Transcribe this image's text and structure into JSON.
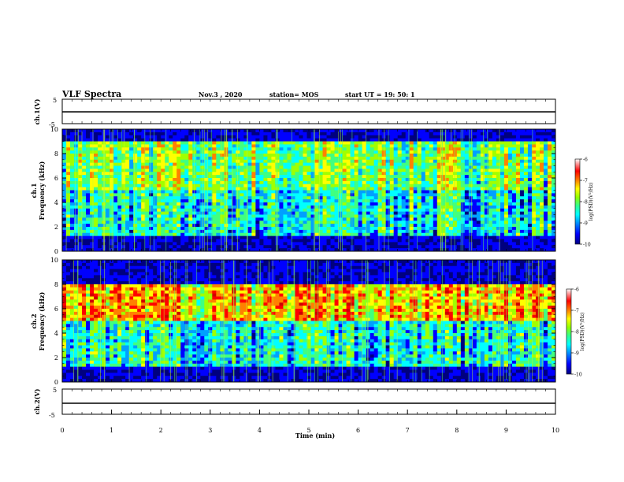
{
  "header": {
    "title": "VLF Spectra",
    "date": "Nov.3 , 2020",
    "station": "station= MOS",
    "start_ut": "start UT = 19: 50: 1"
  },
  "chart_data": [
    {
      "type": "line",
      "panel": "ch1-waveform",
      "ylabel": "ch.1(V)",
      "ylim": [
        -5,
        5
      ],
      "yticks": [
        "5",
        "-5"
      ],
      "x": [
        0,
        10
      ],
      "y": [
        -1.7,
        -1.7
      ]
    },
    {
      "type": "heatmap",
      "panel": "ch1-spectrogram",
      "ylabel_channel": "ch.1",
      "ylabel": "Frequency (kHz)",
      "ylim": [
        0,
        10
      ],
      "yticks": [
        "0",
        "2",
        "4",
        "6",
        "8",
        "10"
      ],
      "xlim": [
        0,
        10
      ],
      "description_bands": [
        {
          "f_low": 0.0,
          "f_high": 1.2,
          "level": "low"
        },
        {
          "f_low": 1.2,
          "f_high": 5.0,
          "level": "medium"
        },
        {
          "f_low": 5.0,
          "f_high": 9.0,
          "level": "medium-high"
        },
        {
          "f_low": 9.0,
          "f_high": 10.0,
          "level": "low"
        }
      ],
      "colorbar": {
        "label": "log(PSD)(V²/Hz)",
        "ticks": [
          "-6",
          "-7",
          "-8",
          "-9",
          "-10"
        ],
        "range": [
          -10,
          -6
        ]
      }
    },
    {
      "type": "heatmap",
      "panel": "ch2-spectrogram",
      "ylabel_channel": "ch.2",
      "ylabel": "Frequency (kHz)",
      "ylim": [
        0,
        10
      ],
      "yticks": [
        "0",
        "2",
        "4",
        "6",
        "8",
        "10"
      ],
      "xlim": [
        0,
        10
      ],
      "description_bands": [
        {
          "f_low": 0.0,
          "f_high": 1.2,
          "level": "low"
        },
        {
          "f_low": 1.2,
          "f_high": 5.0,
          "level": "medium"
        },
        {
          "f_low": 5.0,
          "f_high": 8.0,
          "level": "high"
        },
        {
          "f_low": 8.0,
          "f_high": 10.0,
          "level": "low"
        }
      ],
      "colorbar": {
        "label": "log(PSD)(V²/Hz)",
        "ticks": [
          "-6",
          "-7",
          "-8",
          "-9",
          "-10"
        ],
        "range": [
          -10,
          -6
        ]
      }
    },
    {
      "type": "line",
      "panel": "ch2-waveform",
      "ylabel": "ch.2(V)",
      "ylim": [
        -5,
        5
      ],
      "yticks": [
        "5",
        "-5"
      ],
      "x": [
        0,
        10
      ],
      "y": [
        -1.7,
        -1.7
      ]
    }
  ],
  "xaxis": {
    "label": "Time (min)",
    "ticks": [
      "0",
      "1",
      "2",
      "3",
      "4",
      "5",
      "6",
      "7",
      "8",
      "9",
      "10"
    ],
    "xlim": [
      0,
      10
    ]
  },
  "colors": {
    "cb_stops": [
      "#00007f",
      "#0000ff",
      "#00a0ff",
      "#00ffff",
      "#40ff80",
      "#a0ff00",
      "#ffff00",
      "#ff8000",
      "#ff0000",
      "#d00000",
      "#ffffff"
    ]
  }
}
